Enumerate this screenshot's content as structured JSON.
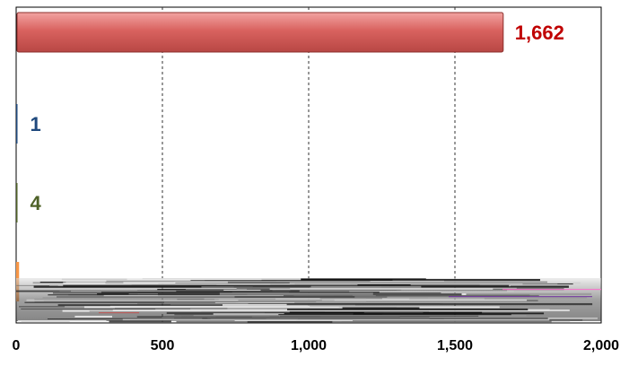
{
  "chart_data": {
    "type": "bar",
    "orientation": "horizontal",
    "categories": [
      "",
      "",
      "",
      ""
    ],
    "values": [
      1662,
      1,
      4,
      10
    ],
    "data_labels": [
      "1,662",
      "1",
      "4",
      ""
    ],
    "colors": [
      "#c0504d",
      "#1f497d",
      "#4f6228",
      "#f79646"
    ],
    "label_colors": [
      "#c00000",
      "#1f497d",
      "#4f6228",
      "#f79646"
    ],
    "xlim": [
      0,
      2000
    ],
    "x_ticks": [
      0,
      500,
      1000,
      1500,
      2000
    ],
    "x_tick_labels": [
      "0",
      "500",
      "1,000",
      "1,500",
      "2,000"
    ],
    "grid": "vertical-dashed",
    "title": "",
    "xlabel": "",
    "ylabel": ""
  }
}
